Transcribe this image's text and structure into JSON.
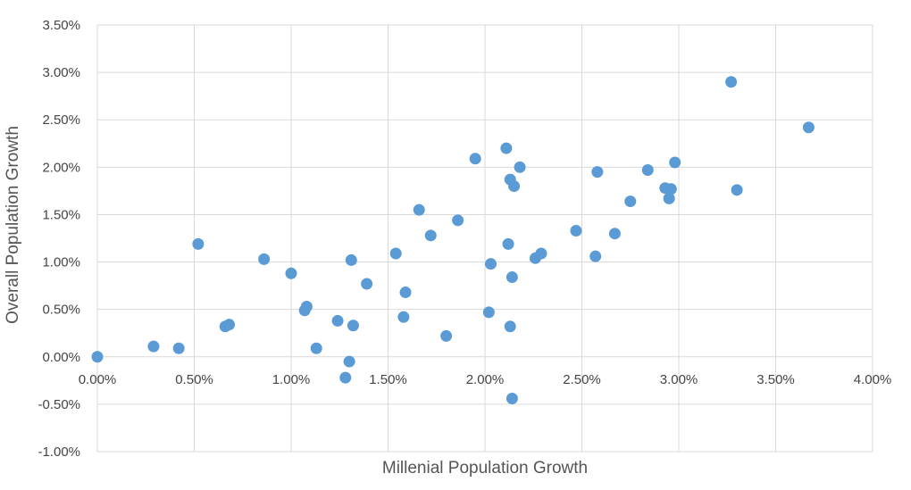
{
  "chart_data": {
    "type": "scatter",
    "title": "",
    "xlabel": "Millenial Population Growth",
    "ylabel": "Overall Population Growth",
    "xlim": [
      0.0,
      0.04
    ],
    "ylim": [
      -0.01,
      0.035
    ],
    "x_ticks": [
      0.0,
      0.005,
      0.01,
      0.015,
      0.02,
      0.025,
      0.03,
      0.035,
      0.04
    ],
    "x_tick_labels": [
      "0.00%",
      "0.50%",
      "1.00%",
      "1.50%",
      "2.00%",
      "2.50%",
      "3.00%",
      "3.50%",
      "4.00%"
    ],
    "y_ticks": [
      -0.01,
      -0.005,
      0.0,
      0.005,
      0.01,
      0.015,
      0.02,
      0.025,
      0.03,
      0.035
    ],
    "y_tick_labels": [
      "-1.00%",
      "-0.50%",
      "0.00%",
      "0.50%",
      "1.00%",
      "1.50%",
      "2.00%",
      "2.50%",
      "3.00%",
      "3.50%"
    ],
    "grid": true,
    "legend": "none",
    "marker_color": "#5B9BD5",
    "points": [
      {
        "x": 0.0,
        "y": 0.0
      },
      {
        "x": 0.0029,
        "y": 0.0011
      },
      {
        "x": 0.0042,
        "y": 0.0009
      },
      {
        "x": 0.0052,
        "y": 0.0119
      },
      {
        "x": 0.0066,
        "y": 0.0032
      },
      {
        "x": 0.0068,
        "y": 0.0034
      },
      {
        "x": 0.0086,
        "y": 0.0103
      },
      {
        "x": 0.01,
        "y": 0.0088
      },
      {
        "x": 0.0107,
        "y": 0.0049
      },
      {
        "x": 0.0108,
        "y": 0.0053
      },
      {
        "x": 0.0113,
        "y": 0.0009
      },
      {
        "x": 0.0124,
        "y": 0.0038
      },
      {
        "x": 0.0128,
        "y": -0.0022
      },
      {
        "x": 0.013,
        "y": -0.0005
      },
      {
        "x": 0.0131,
        "y": 0.0102
      },
      {
        "x": 0.0132,
        "y": 0.0033
      },
      {
        "x": 0.0139,
        "y": 0.0077
      },
      {
        "x": 0.0154,
        "y": 0.0109
      },
      {
        "x": 0.0158,
        "y": 0.0042
      },
      {
        "x": 0.0159,
        "y": 0.0068
      },
      {
        "x": 0.0166,
        "y": 0.0155
      },
      {
        "x": 0.0172,
        "y": 0.0128
      },
      {
        "x": 0.018,
        "y": 0.0022
      },
      {
        "x": 0.0186,
        "y": 0.0144
      },
      {
        "x": 0.0195,
        "y": 0.0209
      },
      {
        "x": 0.0202,
        "y": 0.0047
      },
      {
        "x": 0.0203,
        "y": 0.0098
      },
      {
        "x": 0.0211,
        "y": 0.022
      },
      {
        "x": 0.0212,
        "y": 0.0119
      },
      {
        "x": 0.0213,
        "y": 0.0032
      },
      {
        "x": 0.0213,
        "y": 0.0187
      },
      {
        "x": 0.0214,
        "y": 0.0084
      },
      {
        "x": 0.0214,
        "y": -0.0044
      },
      {
        "x": 0.0215,
        "y": 0.018
      },
      {
        "x": 0.0218,
        "y": 0.02
      },
      {
        "x": 0.0226,
        "y": 0.0104
      },
      {
        "x": 0.0229,
        "y": 0.0109
      },
      {
        "x": 0.0247,
        "y": 0.0133
      },
      {
        "x": 0.0257,
        "y": 0.0106
      },
      {
        "x": 0.0258,
        "y": 0.0195
      },
      {
        "x": 0.0267,
        "y": 0.013
      },
      {
        "x": 0.0275,
        "y": 0.0164
      },
      {
        "x": 0.0284,
        "y": 0.0197
      },
      {
        "x": 0.0293,
        "y": 0.0178
      },
      {
        "x": 0.0295,
        "y": 0.0167
      },
      {
        "x": 0.0296,
        "y": 0.0177
      },
      {
        "x": 0.0298,
        "y": 0.0205
      },
      {
        "x": 0.0327,
        "y": 0.029
      },
      {
        "x": 0.033,
        "y": 0.0176
      },
      {
        "x": 0.0367,
        "y": 0.0242
      }
    ]
  }
}
